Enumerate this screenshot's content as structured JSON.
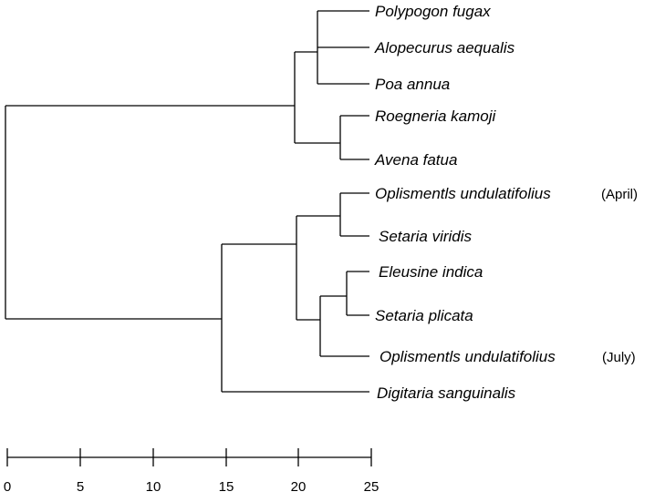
{
  "tree": {
    "taxa": [
      {
        "id": "polypogon",
        "name": "Polypogon fugax",
        "note": ""
      },
      {
        "id": "alopecurus",
        "name": "Alopecurus aequalis",
        "note": ""
      },
      {
        "id": "poa",
        "name": "Poa annua",
        "note": ""
      },
      {
        "id": "roegneria",
        "name": "Roegneria kamoji",
        "note": ""
      },
      {
        "id": "avena",
        "name": "Avena fatua",
        "note": ""
      },
      {
        "id": "oplis-april",
        "name": "Oplismentls undulatifolius",
        "note": "(April)"
      },
      {
        "id": "setaria-viridis",
        "name": "Setaria viridis",
        "note": ""
      },
      {
        "id": "eleusine",
        "name": "Eleusine indica",
        "note": ""
      },
      {
        "id": "setaria-plicata",
        "name": "Setaria plicata",
        "note": ""
      },
      {
        "id": "oplis-july",
        "name": "Oplismentls undulatifolius",
        "note": "(July)"
      },
      {
        "id": "digitaria",
        "name": "Digitaria sanguinalis",
        "note": ""
      }
    ]
  },
  "scale": {
    "ticks": [
      "0",
      "5",
      "10",
      "15",
      "20",
      "25"
    ]
  }
}
